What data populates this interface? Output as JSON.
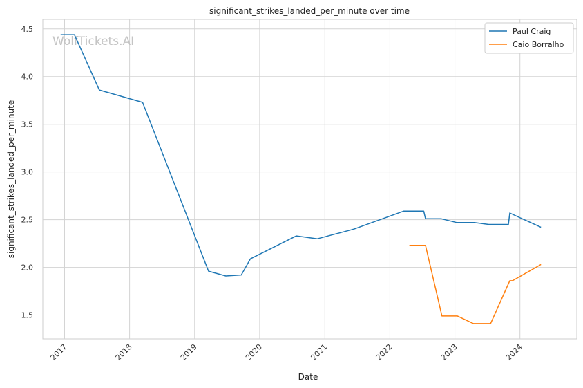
{
  "chart_data": {
    "type": "line",
    "title": "significant_strikes_landed_per_minute over time",
    "xlabel": "Date",
    "ylabel": "significant_strikes_landed_per_minute",
    "watermark": "WolfTickets.AI",
    "xlim": [
      "2016-09-01",
      "2024-11-15"
    ],
    "ylim": [
      1.25,
      4.6
    ],
    "x_ticks": [
      "2017",
      "2018",
      "2019",
      "2020",
      "2021",
      "2022",
      "2023",
      "2024"
    ],
    "y_ticks": [
      "1.5",
      "2.0",
      "2.5",
      "3.0",
      "3.5",
      "4.0",
      "4.5"
    ],
    "grid": true,
    "legend_position": "top-right",
    "series": [
      {
        "name": "Paul Craig",
        "color": "#1f77b4",
        "points": [
          [
            "2016-12-10",
            4.44
          ],
          [
            "2017-02-25",
            4.44
          ],
          [
            "2017-07-15",
            3.86
          ],
          [
            "2018-03-15",
            3.73
          ],
          [
            "2019-03-20",
            1.96
          ],
          [
            "2019-06-25",
            1.91
          ],
          [
            "2019-09-20",
            1.92
          ],
          [
            "2019-11-10",
            2.09
          ],
          [
            "2020-07-25",
            2.33
          ],
          [
            "2020-11-20",
            2.3
          ],
          [
            "2021-06-10",
            2.4
          ],
          [
            "2022-03-20",
            2.59
          ],
          [
            "2022-07-10",
            2.59
          ],
          [
            "2022-07-20",
            2.51
          ],
          [
            "2022-10-15",
            2.51
          ],
          [
            "2023-01-10",
            2.47
          ],
          [
            "2023-04-20",
            2.47
          ],
          [
            "2023-07-10",
            2.45
          ],
          [
            "2023-10-28",
            2.45
          ],
          [
            "2023-11-05",
            2.57
          ],
          [
            "2024-04-28",
            2.42
          ]
        ]
      },
      {
        "name": "Caio Borralho",
        "color": "#ff7f0e",
        "points": [
          [
            "2022-04-20",
            2.23
          ],
          [
            "2022-07-20",
            2.23
          ],
          [
            "2022-10-20",
            1.49
          ],
          [
            "2023-01-15",
            1.49
          ],
          [
            "2023-04-15",
            1.41
          ],
          [
            "2023-07-20",
            1.41
          ],
          [
            "2023-11-05",
            1.86
          ],
          [
            "2023-11-20",
            1.86
          ],
          [
            "2024-04-28",
            2.03
          ]
        ]
      }
    ]
  }
}
